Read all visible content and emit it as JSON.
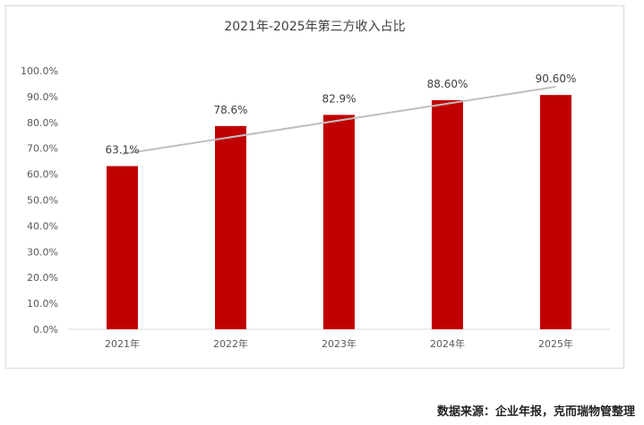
{
  "chart_data": {
    "type": "bar",
    "title": "2021年-2025年第三方收入占比",
    "categories": [
      "2021年",
      "2022年",
      "2023年",
      "2024年",
      "2025年"
    ],
    "values": [
      63.1,
      78.6,
      82.9,
      88.6,
      90.6
    ],
    "data_labels": [
      "63.1%",
      "78.6%",
      "82.9%",
      "88.60%",
      "90.60%"
    ],
    "ylim": [
      0,
      100
    ],
    "y_ticks": [
      "0.0%",
      "10.0%",
      "20.0%",
      "30.0%",
      "40.0%",
      "50.0%",
      "60.0%",
      "70.0%",
      "80.0%",
      "90.0%",
      "100.0%"
    ],
    "trendline": "linear",
    "bar_color": "#c00000",
    "trendline_color": "#bfbfbf"
  },
  "source_note": "数据来源：企业年报，克而瑞物管整理"
}
